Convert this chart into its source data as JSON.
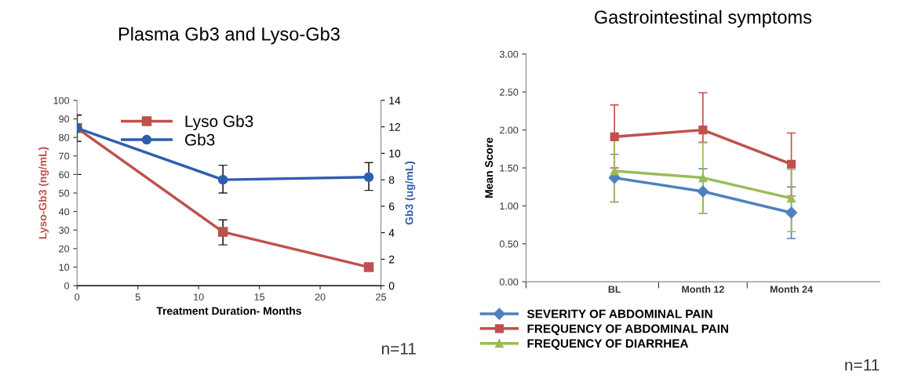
{
  "chart_data": [
    {
      "type": "line",
      "title": "Plasma Gb3 and Lyso-Gb3",
      "xlabel": "Treatment Duration- Months",
      "ylabel": "Lyso-Gb3 (ng/mL)",
      "y2label": "Gb3 (ug/mL)",
      "x": [
        0,
        12,
        24
      ],
      "xlim": [
        0,
        25
      ],
      "xticks": [
        0,
        5,
        10,
        15,
        20,
        25
      ],
      "ylim": [
        0,
        100
      ],
      "yticks": [
        0,
        10,
        20,
        30,
        40,
        50,
        60,
        70,
        80,
        90,
        100
      ],
      "y2lim": [
        0,
        14
      ],
      "y2ticks": [
        0,
        2,
        4,
        6,
        8,
        10,
        12,
        14
      ],
      "series": [
        {
          "name": "Lyso Gb3",
          "color": "#c0504d",
          "marker": "square",
          "values": [
            85,
            29,
            10
          ],
          "errors": [
            [
              60,
              92
            ],
            [
              22,
              35.5
            ],
            null
          ]
        },
        {
          "name": "Gb3",
          "color": "#2e5fae",
          "marker": "circle",
          "axis": "y2",
          "values": [
            11.9,
            8.0,
            8.2
          ],
          "errors": [
            [
              10.9,
              12.9
            ],
            [
              7.0,
              9.1
            ],
            [
              7.2,
              9.3
            ]
          ]
        }
      ],
      "grid": false,
      "legend": "top left",
      "annotations": [
        "n=11"
      ]
    },
    {
      "type": "line",
      "title": "Gastrointestinal symptoms",
      "ylabel": "Mean Score",
      "categories": [
        "BL",
        "Month 12",
        "Month 24"
      ],
      "ylim": [
        0,
        3
      ],
      "yticks": [
        {
          "value": 0,
          "label": "0.00"
        },
        {
          "value": 0.5,
          "label": "0.50"
        },
        {
          "value": 1,
          "label": "1.00"
        },
        {
          "value": 1.5,
          "label": "1.50"
        },
        {
          "value": 2,
          "label": "2.00"
        },
        {
          "value": 2.5,
          "label": "2.50"
        },
        {
          "value": 3,
          "label": "3.00"
        }
      ],
      "series": [
        {
          "name": "SEVERITY OF ABDOMINAL PAIN",
          "color": "#4f81bd",
          "marker": "diamond",
          "values": [
            1.37,
            1.19,
            0.91
          ],
          "errors": [
            [
              1.05,
              1.68
            ],
            [
              0.9,
              1.49
            ],
            [
              0.57,
              1.25
            ]
          ]
        },
        {
          "name": "FREQUENCY OF ABDOMINAL PAIN",
          "color": "#c0504d",
          "marker": "square",
          "values": [
            1.91,
            2.0,
            1.55
          ],
          "errors": [
            [
              1.5,
              2.33
            ],
            [
              1.84,
              2.49
            ],
            [
              1.13,
              1.96
            ]
          ]
        },
        {
          "name": "FREQUENCY OF DIARRHEA",
          "color": "#9bbb59",
          "marker": "triangle",
          "values": [
            1.46,
            1.37,
            1.1
          ],
          "errors": [
            [
              1.05,
              1.88
            ],
            [
              0.9,
              1.83
            ],
            [
              0.66,
              1.48
            ]
          ]
        }
      ],
      "grid": false,
      "legend": "bottom",
      "annotations": [
        "n=11"
      ]
    }
  ]
}
